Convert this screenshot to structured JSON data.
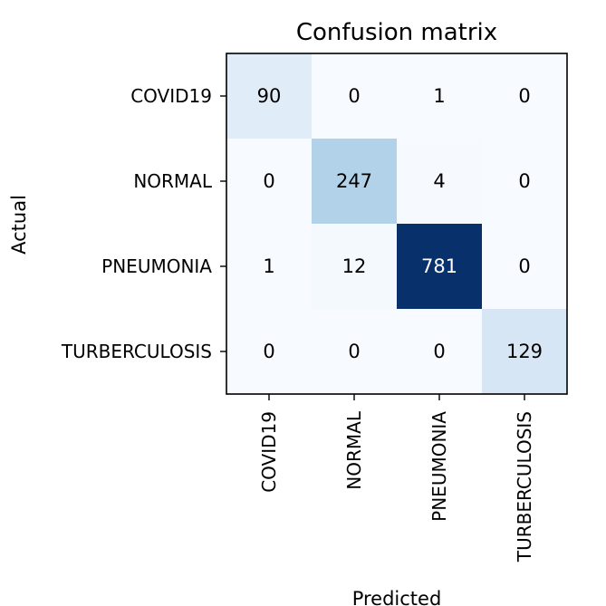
{
  "chart_data": {
    "type": "heatmap",
    "title": "Confusion matrix",
    "xlabel": "Predicted",
    "ylabel": "Actual",
    "x_categories": [
      "COVID19",
      "NORMAL",
      "PNEUMONIA",
      "TURBERCULOSIS"
    ],
    "y_categories": [
      "COVID19",
      "NORMAL",
      "PNEUMONIA",
      "TURBERCULOSIS"
    ],
    "values": [
      [
        90,
        0,
        1,
        0
      ],
      [
        0,
        247,
        4,
        0
      ],
      [
        1,
        12,
        781,
        0
      ],
      [
        0,
        0,
        0,
        129
      ]
    ],
    "colormap": "Blues",
    "color_low": "#f7fbff",
    "color_high": "#08306b",
    "vmin": 0,
    "vmax": 781,
    "grid": false,
    "legend": "none"
  }
}
